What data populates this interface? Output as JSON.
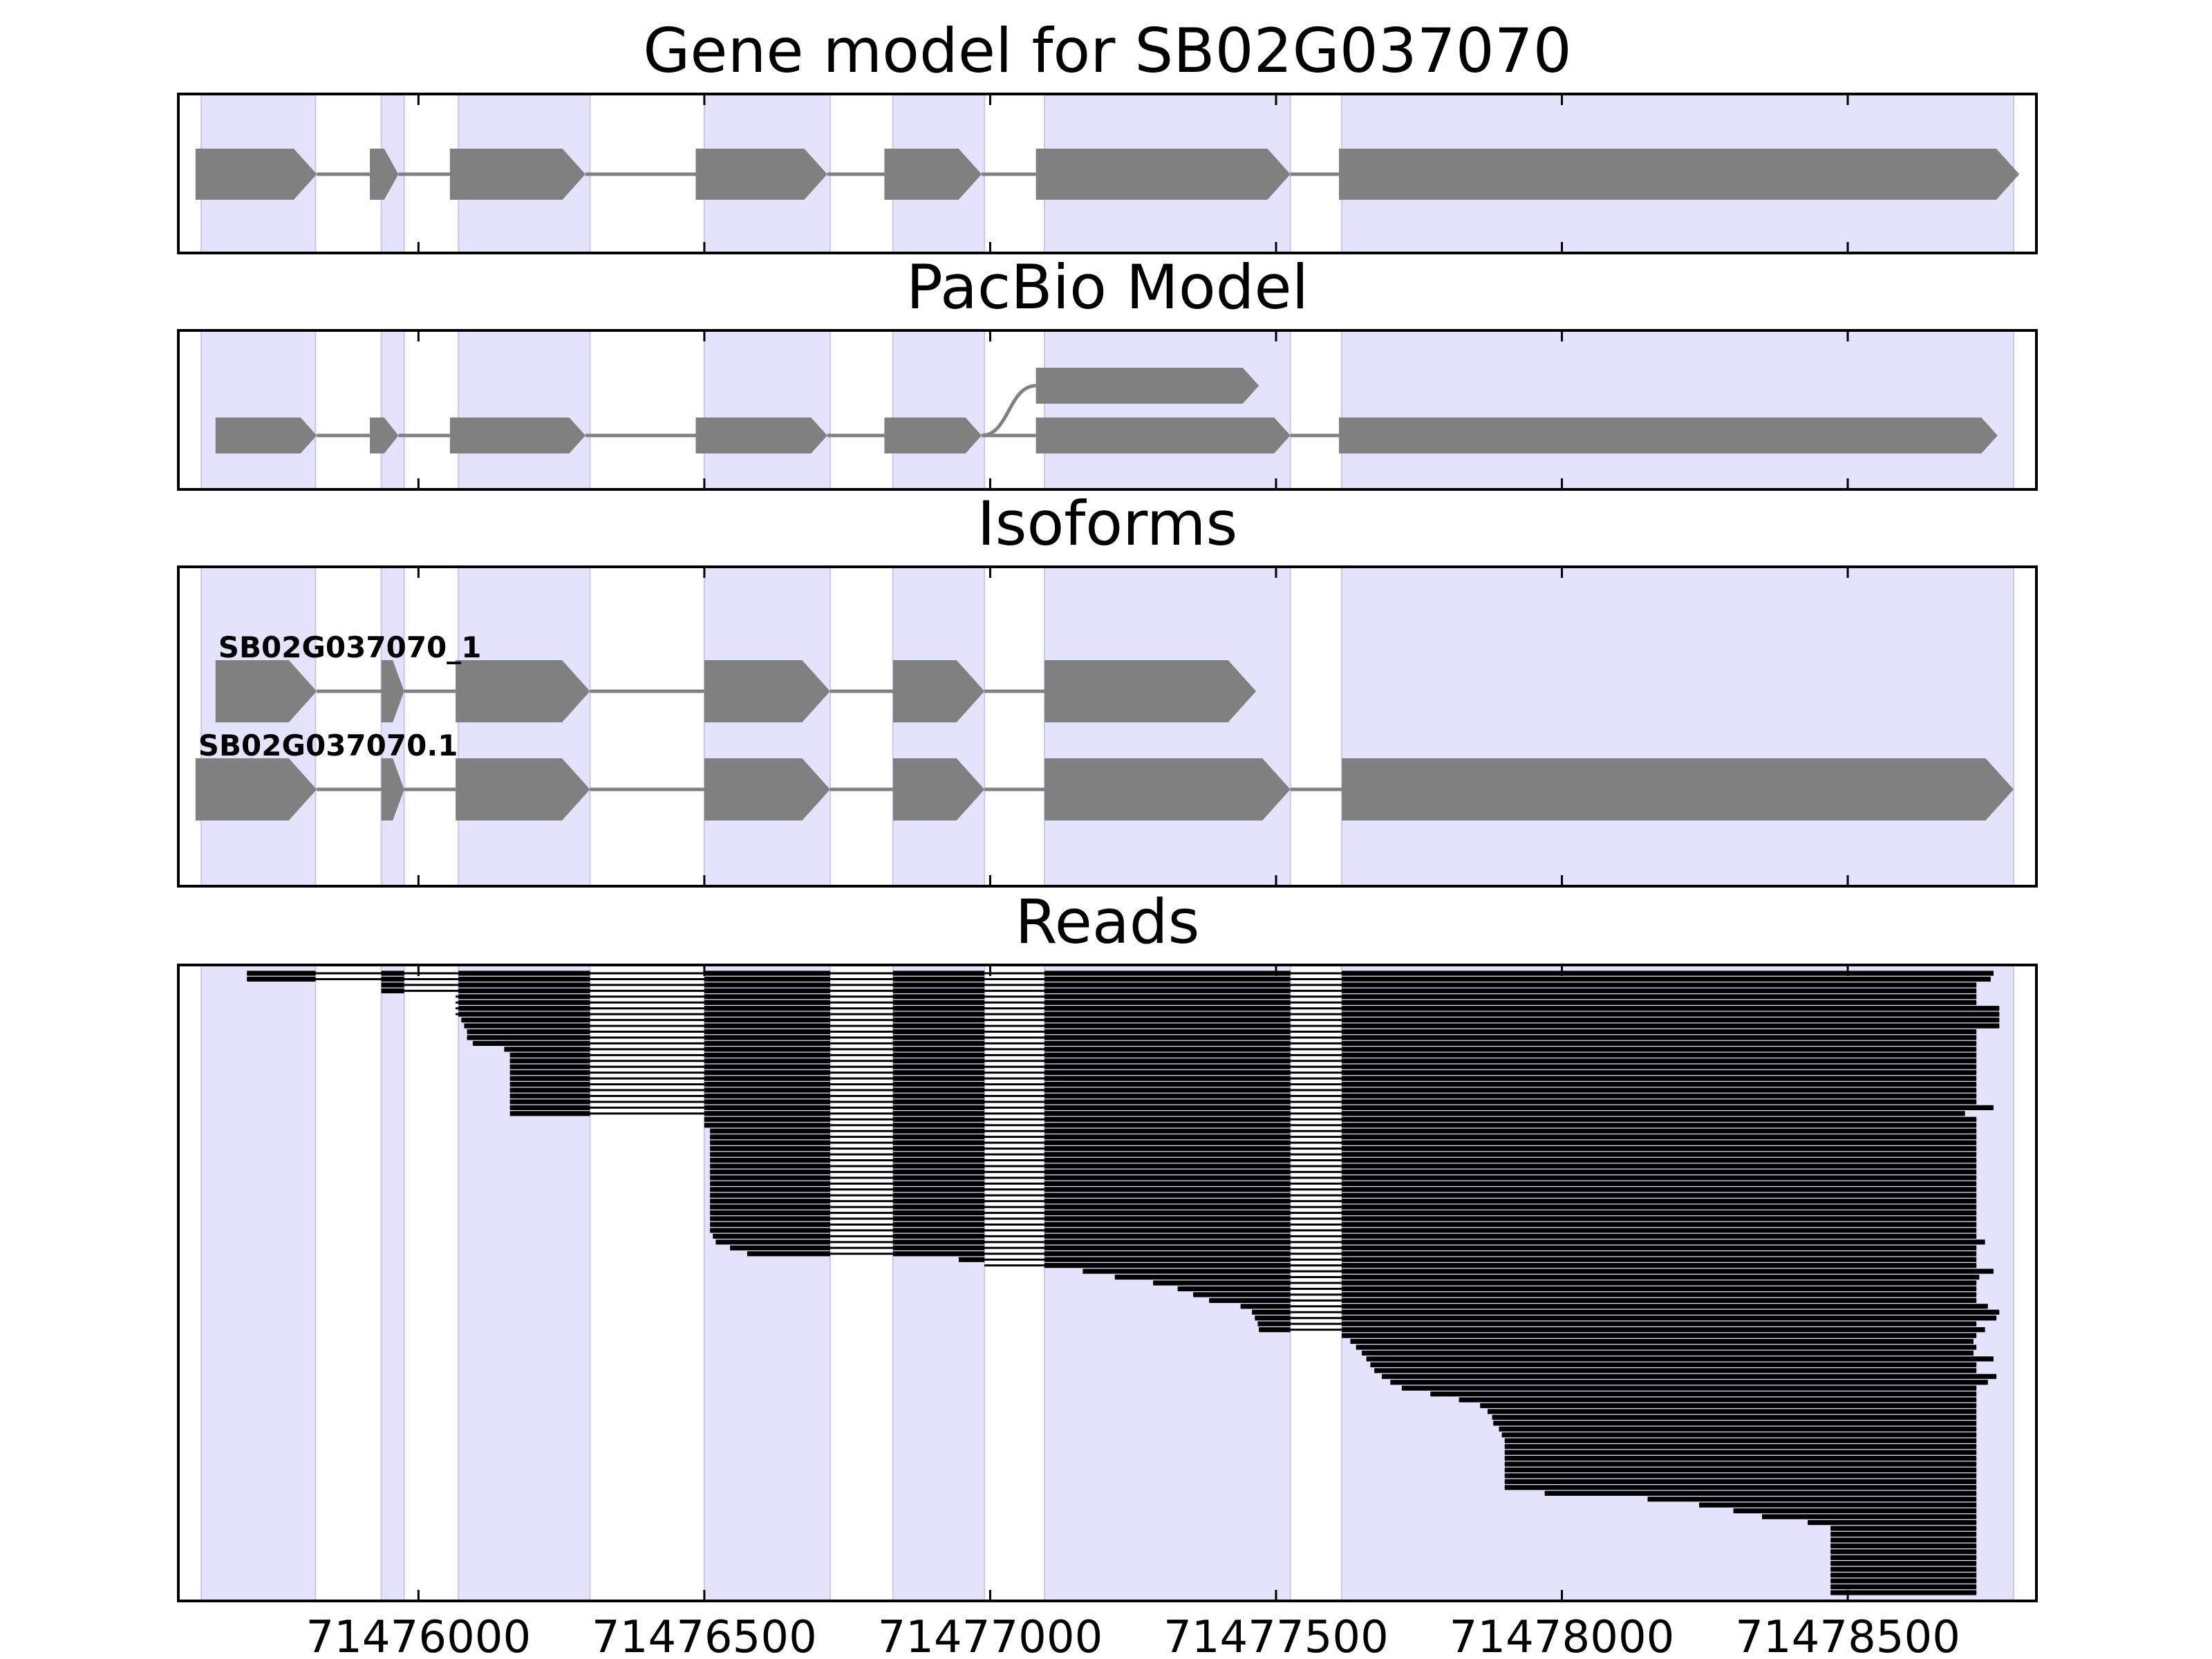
{
  "chart_data": {
    "type": "gene-structure",
    "xlim": [
      71475580,
      71478830
    ],
    "x_ticks": [
      71476000,
      71476500,
      71477000,
      71477500,
      71478000,
      71478500
    ],
    "x_tick_labels": [
      "71476000",
      "71476500",
      "71477000",
      "71477500",
      "71478000",
      "71478500"
    ],
    "exon_regions": [
      [
        71475620,
        71475820
      ],
      [
        71475935,
        71475975
      ],
      [
        71476070,
        71476300
      ],
      [
        71476500,
        71476720
      ],
      [
        71476830,
        71476990
      ],
      [
        71477095,
        71477525
      ],
      [
        71477615,
        71478790
      ]
    ],
    "colors": {
      "exon_shading": "#e3e3fb",
      "feature": "#808080",
      "read": "#000000"
    },
    "panels": [
      {
        "title": "Gene model for SB02G037070",
        "models": [
          {
            "lane": 0,
            "exons": [
              [
                71475610,
                71475822
              ],
              [
                71475915,
                71475965
              ],
              [
                71476055,
                71476292
              ],
              [
                71476485,
                71476715
              ],
              [
                71476815,
                71476985
              ],
              [
                71477080,
                71477525
              ],
              [
                71477610,
                71478800
              ]
            ]
          }
        ]
      },
      {
        "title": "PacBio Model",
        "models": [
          {
            "lane": 0,
            "exons": [
              [
                71475645,
                71475822
              ],
              [
                71475915,
                71475965
              ],
              [
                71476055,
                71476292
              ],
              [
                71476485,
                71476715
              ],
              [
                71476815,
                71476985
              ],
              [
                71477080,
                71477525
              ],
              [
                71477610,
                71478762
              ]
            ]
          },
          {
            "lane": 1,
            "branch_from": 71476985,
            "exons": [
              [
                71477080,
                71477470
              ]
            ]
          }
        ]
      },
      {
        "title": "Isoforms",
        "models": [
          {
            "lane": 1,
            "label": "SB02G037070_1",
            "exons": [
              [
                71475645,
                71475822
              ],
              [
                71475935,
                71475975
              ],
              [
                71476065,
                71476300
              ],
              [
                71476500,
                71476720
              ],
              [
                71476830,
                71476990
              ],
              [
                71477095,
                71477465
              ]
            ]
          },
          {
            "lane": 0,
            "label": "SB02G037070.1",
            "exons": [
              [
                71475610,
                71475822
              ],
              [
                71475935,
                71475975
              ],
              [
                71476065,
                71476300
              ],
              [
                71476500,
                71476720
              ],
              [
                71476830,
                71476990
              ],
              [
                71477095,
                71477525
              ],
              [
                71477615,
                71478790
              ]
            ]
          }
        ]
      },
      {
        "title": "Reads",
        "read_count": 107,
        "read_starts": [
          71475700,
          71475700,
          71475935,
          71475935,
          71476065,
          71476065,
          71476065,
          71476065,
          71476075,
          71476080,
          71476085,
          71476085,
          71476095,
          71476150,
          71476160,
          71476160,
          71476160,
          71476160,
          71476160,
          71476160,
          71476160,
          71476160,
          71476160,
          71476160,
          71476160,
          71476500,
          71476500,
          71476510,
          71476510,
          71476510,
          71476510,
          71476510,
          71476510,
          71476510,
          71476510,
          71476510,
          71476510,
          71476510,
          71476510,
          71476510,
          71476510,
          71476510,
          71476510,
          71476510,
          71476510,
          71476515,
          71476520,
          71476545,
          71476575,
          71476945,
          71476990,
          71477162,
          71477218,
          71477285,
          71477328,
          71477355,
          71477383,
          71477438,
          71477458,
          71477463,
          71477468,
          71477470,
          71477615,
          71477630,
          71477640,
          71477650,
          71477658,
          71477665,
          71477672,
          71477685,
          71477700,
          71477720,
          71477770,
          71477820,
          71477857,
          71477870,
          71477878,
          71477880,
          71477890,
          71477895,
          71477900,
          71477900,
          71477900,
          71477900,
          71477900,
          71477900,
          71477900,
          71477900,
          71477900,
          71477970,
          71478150,
          71478240,
          71478300,
          71478350,
          71478430,
          71478470,
          71478470,
          71478470,
          71478470,
          71478470,
          71478470,
          71478470,
          71478470,
          71478470,
          71478470,
          71478470,
          71478470
        ],
        "read_ends": [
          71478755,
          71478750,
          71478725,
          71478725,
          71478725,
          71478725,
          71478765,
          71478765,
          71478765,
          71478765,
          71478725,
          71478725,
          71478725,
          71478725,
          71478725,
          71478725,
          71478725,
          71478725,
          71478725,
          71478725,
          71478725,
          71478725,
          71478725,
          71478755,
          71478705,
          71478725,
          71478725,
          71478725,
          71478725,
          71478725,
          71478725,
          71478725,
          71478725,
          71478725,
          71478725,
          71478725,
          71478725,
          71478725,
          71478725,
          71478725,
          71478725,
          71478725,
          71478725,
          71478725,
          71478725,
          71478725,
          71478740,
          71478725,
          71478725,
          71478725,
          71478725,
          71478755,
          71478730,
          71478725,
          71478725,
          71478725,
          71478725,
          71478745,
          71478765,
          71478760,
          71478725,
          71478740,
          71478725,
          71478720,
          71478725,
          71478720,
          71478755,
          71478725,
          71478725,
          71478760,
          71478745,
          71478725,
          71478725,
          71478725,
          71478725,
          71478725,
          71478725,
          71478725,
          71478725,
          71478725,
          71478725,
          71478725,
          71478725,
          71478725,
          71478725,
          71478725,
          71478725,
          71478725,
          71478725,
          71478725,
          71478725,
          71478725,
          71478725,
          71478725,
          71478725,
          71478725,
          71478725,
          71478725,
          71478725,
          71478725,
          71478725,
          71478725,
          71478725,
          71478725,
          71478725,
          71478725,
          71478725
        ]
      }
    ]
  }
}
